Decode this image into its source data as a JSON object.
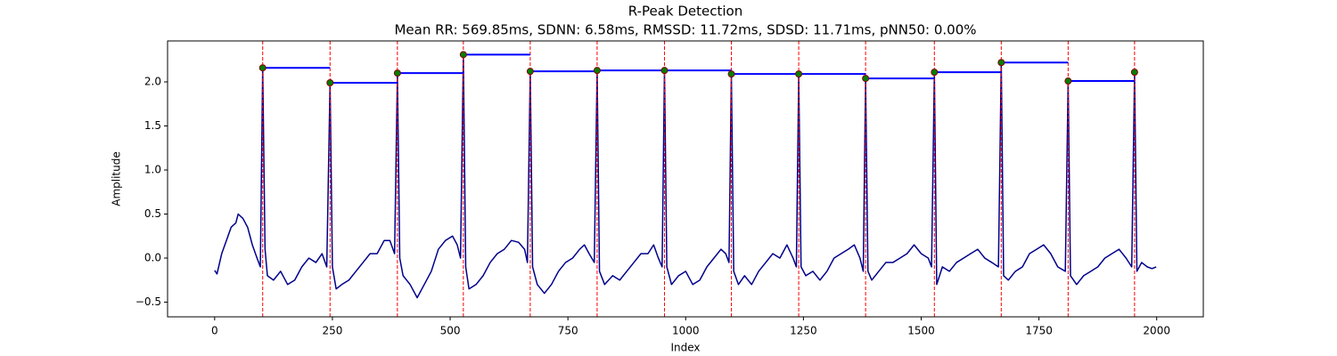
{
  "chart_data": {
    "type": "line",
    "title": "R-Peak Detection",
    "subtitle": "Mean RR: 569.85ms, SDNN: 6.58ms, RMSSD: 11.72ms, SDSD: 11.71ms, pNN50: 0.00%",
    "x_label": "Index",
    "y_label": "Amplitude",
    "xlim": [
      -99.95,
      2098.95
    ],
    "xticks": [
      0,
      250,
      500,
      750,
      1000,
      1250,
      1500,
      1750,
      2000
    ],
    "ylim": [
      -0.667,
      2.465
    ],
    "yticks": [
      {
        "value": -0.5,
        "label": "−0.5"
      },
      {
        "value": 0,
        "label": "0.0"
      },
      0.5,
      {
        "value": 1,
        "label": "1.0"
      },
      1.5,
      {
        "value": 2,
        "label": "2.0"
      }
    ],
    "x": [
      0,
      5,
      15,
      25,
      35,
      45,
      50,
      60,
      70,
      80,
      90,
      97,
      102,
      107,
      112,
      125,
      140,
      155,
      170,
      185,
      200,
      215,
      228,
      238,
      245,
      250,
      258,
      270,
      285,
      300,
      315,
      330,
      345,
      360,
      372,
      382,
      388,
      393,
      400,
      415,
      430,
      445,
      460,
      475,
      490,
      505,
      515,
      522,
      528,
      533,
      540,
      555,
      570,
      585,
      600,
      615,
      630,
      645,
      658,
      664,
      670,
      675,
      685,
      700,
      715,
      730,
      745,
      760,
      775,
      785,
      795,
      806,
      812,
      817,
      828,
      845,
      860,
      875,
      890,
      905,
      920,
      932,
      942,
      950,
      955,
      960,
      970,
      985,
      1000,
      1015,
      1030,
      1045,
      1060,
      1075,
      1085,
      1092,
      1097,
      1102,
      1112,
      1125,
      1140,
      1155,
      1170,
      1185,
      1200,
      1215,
      1228,
      1235,
      1240,
      1245,
      1255,
      1270,
      1285,
      1300,
      1315,
      1330,
      1345,
      1358,
      1370,
      1377,
      1382,
      1387,
      1395,
      1410,
      1425,
      1440,
      1455,
      1470,
      1485,
      1500,
      1515,
      1522,
      1528,
      1533,
      1545,
      1560,
      1575,
      1590,
      1605,
      1620,
      1635,
      1650,
      1664,
      1670,
      1675,
      1685,
      1700,
      1715,
      1730,
      1745,
      1760,
      1775,
      1790,
      1806,
      1812,
      1817,
      1830,
      1845,
      1860,
      1875,
      1890,
      1905,
      1920,
      1935,
      1947,
      1953,
      1958,
      1968,
      1980,
      1990,
      1999
    ],
    "series": [
      {
        "color": "#00008b",
        "values": [
          -0.14,
          -0.18,
          0.05,
          0.2,
          0.35,
          0.4,
          0.5,
          0.45,
          0.35,
          0.15,
          0.0,
          -0.1,
          2.16,
          0.1,
          -0.2,
          -0.25,
          -0.15,
          -0.3,
          -0.25,
          -0.1,
          0.0,
          -0.05,
          0.05,
          -0.1,
          1.99,
          -0.1,
          -0.35,
          -0.3,
          -0.25,
          -0.15,
          -0.05,
          0.05,
          0.05,
          0.2,
          0.2,
          0.05,
          2.1,
          0.0,
          -0.2,
          -0.3,
          -0.45,
          -0.3,
          -0.15,
          0.1,
          0.2,
          0.25,
          0.15,
          0.0,
          2.31,
          -0.1,
          -0.35,
          -0.3,
          -0.2,
          -0.05,
          0.05,
          0.1,
          0.2,
          0.18,
          0.1,
          -0.05,
          2.12,
          -0.1,
          -0.3,
          -0.4,
          -0.3,
          -0.15,
          -0.05,
          0.0,
          0.1,
          0.15,
          0.05,
          -0.05,
          2.13,
          -0.15,
          -0.3,
          -0.2,
          -0.25,
          -0.15,
          -0.05,
          0.05,
          0.05,
          0.15,
          0.0,
          -0.1,
          2.13,
          -0.1,
          -0.3,
          -0.2,
          -0.15,
          -0.3,
          -0.25,
          -0.1,
          0.0,
          0.1,
          0.05,
          -0.05,
          2.09,
          -0.15,
          -0.3,
          -0.2,
          -0.3,
          -0.15,
          -0.05,
          0.05,
          0.0,
          0.15,
          0.0,
          -0.1,
          2.09,
          -0.1,
          -0.2,
          -0.15,
          -0.25,
          -0.15,
          0.0,
          0.05,
          0.1,
          0.15,
          0.0,
          -0.15,
          2.04,
          -0.15,
          -0.25,
          -0.15,
          -0.05,
          -0.05,
          0.0,
          0.05,
          0.15,
          0.05,
          0.0,
          -0.1,
          2.11,
          -0.3,
          -0.1,
          -0.15,
          -0.05,
          0.0,
          0.05,
          0.1,
          0.0,
          -0.05,
          -0.1,
          2.22,
          -0.2,
          -0.25,
          -0.15,
          -0.1,
          0.05,
          0.1,
          0.15,
          0.05,
          -0.1,
          -0.15,
          2.01,
          -0.2,
          -0.3,
          -0.2,
          -0.15,
          -0.1,
          0.0,
          0.05,
          0.1,
          0.0,
          -0.1,
          2.11,
          -0.15,
          -0.05,
          -0.1,
          -0.12,
          -0.1
        ]
      }
    ],
    "peaks": {
      "x": [
        102,
        245,
        388,
        528,
        670,
        812,
        955,
        1097,
        1240,
        1382,
        1528,
        1670,
        1812,
        1953
      ],
      "values": [
        2.16,
        1.99,
        2.1,
        2.31,
        2.12,
        2.13,
        2.13,
        2.09,
        2.09,
        2.04,
        2.11,
        2.22,
        2.01,
        2.11
      ],
      "color": "#008000",
      "edge_color": "#8b0000",
      "marker_line_color": "#ff0000",
      "interval_color": "#0000ff"
    }
  }
}
